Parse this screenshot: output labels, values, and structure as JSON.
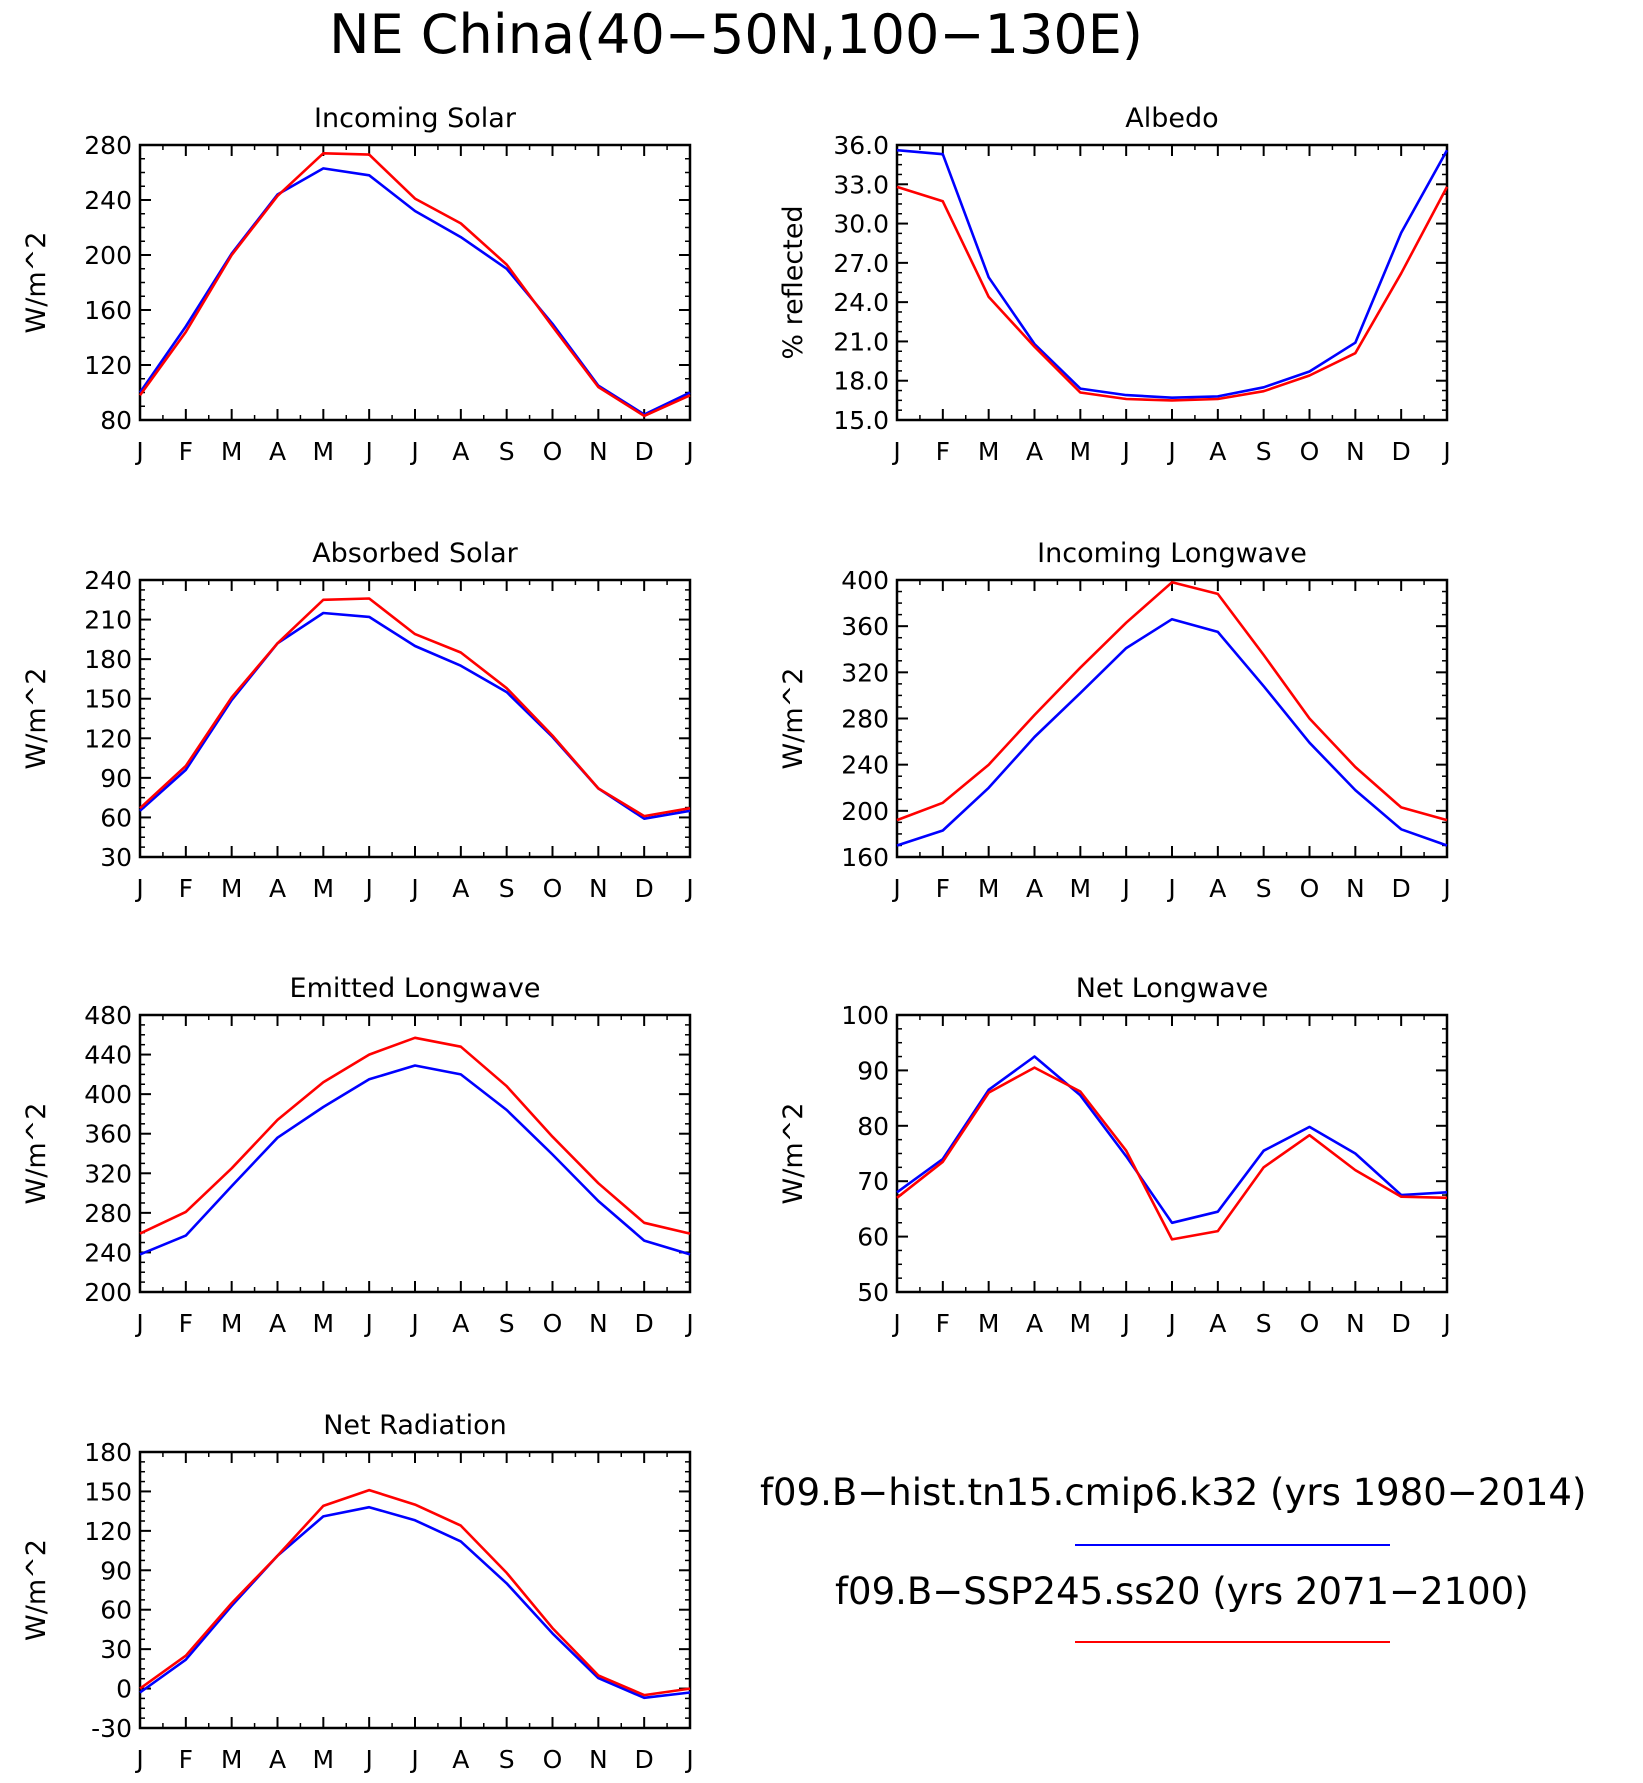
{
  "title": "NE China(40−50N,100−130E)",
  "months": [
    "J",
    "F",
    "M",
    "A",
    "M",
    "J",
    "J",
    "A",
    "S",
    "O",
    "N",
    "D",
    "J"
  ],
  "series_colors": {
    "hist": "#0000ff",
    "ssp": "#ff0000"
  },
  "legend": {
    "hist_label": "f09.B−hist.tn15.cmip6.k32 (yrs 1980−2014)",
    "ssp_label": "f09.B−SSP245.ss20 (yrs 2071−2100)"
  },
  "chart_data": [
    {
      "type": "line",
      "title": "Incoming Solar",
      "ylabel": "W/m^2",
      "ylim": [
        80,
        280
      ],
      "yticks": [
        "80",
        "120",
        "160",
        "200",
        "240",
        "280"
      ],
      "x": [
        "J",
        "F",
        "M",
        "A",
        "M",
        "J",
        "J",
        "A",
        "S",
        "O",
        "N",
        "D",
        "J"
      ],
      "series": [
        {
          "name": "f09.B−hist.tn15.cmip6.k32 (yrs 1980−2014)",
          "values": [
            100,
            148,
            201,
            244,
            263,
            258,
            232,
            213,
            190,
            150,
            105,
            84,
            100
          ]
        },
        {
          "name": "f09.B−SSP245.ss20 (yrs 2071−2100)",
          "values": [
            98,
            144,
            200,
            243,
            274,
            273,
            241,
            223,
            193,
            148,
            104,
            83,
            98
          ]
        }
      ]
    },
    {
      "type": "line",
      "title": "Albedo",
      "ylabel": "% reflected",
      "ylim": [
        15,
        36
      ],
      "yticks": [
        "15.0",
        "18.0",
        "21.0",
        "24.0",
        "27.0",
        "30.0",
        "33.0",
        "36.0"
      ],
      "x": [
        "J",
        "F",
        "M",
        "A",
        "M",
        "J",
        "J",
        "A",
        "S",
        "O",
        "N",
        "D",
        "J"
      ],
      "series": [
        {
          "name": "f09.B−hist.tn15.cmip6.k32 (yrs 1980−2014)",
          "values": [
            35.6,
            35.3,
            25.9,
            20.8,
            17.4,
            16.9,
            16.7,
            16.8,
            17.5,
            18.7,
            20.9,
            29.3,
            35.6
          ]
        },
        {
          "name": "f09.B−SSP245.ss20 (yrs 2071−2100)",
          "values": [
            32.8,
            31.7,
            24.4,
            20.6,
            17.1,
            16.6,
            16.5,
            16.6,
            17.2,
            18.4,
            20.1,
            26.2,
            32.8
          ]
        }
      ]
    },
    {
      "type": "line",
      "title": "Absorbed Solar",
      "ylabel": "W/m^2",
      "ylim": [
        30,
        240
      ],
      "yticks": [
        "30",
        "60",
        "90",
        "120",
        "150",
        "180",
        "210",
        "240"
      ],
      "x": [
        "J",
        "F",
        "M",
        "A",
        "M",
        "J",
        "J",
        "A",
        "S",
        "O",
        "N",
        "D",
        "J"
      ],
      "series": [
        {
          "name": "f09.B−hist.tn15.cmip6.k32 (yrs 1980−2014)",
          "values": [
            65,
            96,
            149,
            192,
            215,
            212,
            190,
            175,
            155,
            121,
            82,
            59,
            65
          ]
        },
        {
          "name": "f09.B−SSP245.ss20 (yrs 2071−2100)",
          "values": [
            67,
            99,
            151,
            192,
            225,
            226,
            199,
            185,
            158,
            122,
            82,
            61,
            67
          ]
        }
      ]
    },
    {
      "type": "line",
      "title": "Incoming Longwave",
      "ylabel": "W/m^2",
      "ylim": [
        160,
        400
      ],
      "yticks": [
        "160",
        "200",
        "240",
        "280",
        "320",
        "360",
        "400"
      ],
      "x": [
        "J",
        "F",
        "M",
        "A",
        "M",
        "J",
        "J",
        "A",
        "S",
        "O",
        "N",
        "D",
        "J"
      ],
      "series": [
        {
          "name": "f09.B−hist.tn15.cmip6.k32 (yrs 1980−2014)",
          "values": [
            170,
            183,
            220,
            264,
            302,
            341,
            366,
            355,
            308,
            259,
            218,
            184,
            170
          ]
        },
        {
          "name": "f09.B−SSP245.ss20 (yrs 2071−2100)",
          "values": [
            192,
            207,
            240,
            283,
            324,
            363,
            398,
            388,
            335,
            280,
            238,
            203,
            192
          ]
        }
      ]
    },
    {
      "type": "line",
      "title": "Emitted Longwave",
      "ylabel": "W/m^2",
      "ylim": [
        200,
        480
      ],
      "yticks": [
        "200",
        "240",
        "280",
        "320",
        "360",
        "400",
        "440",
        "480"
      ],
      "x": [
        "J",
        "F",
        "M",
        "A",
        "M",
        "J",
        "J",
        "A",
        "S",
        "O",
        "N",
        "D",
        "J"
      ],
      "series": [
        {
          "name": "f09.B−hist.tn15.cmip6.k32 (yrs 1980−2014)",
          "values": [
            238,
            257,
            307,
            356,
            387,
            415,
            429,
            420,
            384,
            339,
            292,
            252,
            238
          ]
        },
        {
          "name": "f09.B−SSP245.ss20 (yrs 2071−2100)",
          "values": [
            259,
            281,
            325,
            374,
            412,
            440,
            457,
            448,
            408,
            357,
            310,
            270,
            259
          ]
        }
      ]
    },
    {
      "type": "line",
      "title": "Net Longwave",
      "ylabel": "W/m^2",
      "ylim": [
        50,
        100
      ],
      "yticks": [
        "50",
        "60",
        "70",
        "80",
        "90",
        "100"
      ],
      "x": [
        "J",
        "F",
        "M",
        "A",
        "M",
        "J",
        "J",
        "A",
        "S",
        "O",
        "N",
        "D",
        "J"
      ],
      "series": [
        {
          "name": "f09.B−hist.tn15.cmip6.k32 (yrs 1980−2014)",
          "values": [
            68,
            74,
            86.5,
            92.5,
            85.5,
            74.5,
            62.5,
            64.5,
            75.5,
            79.8,
            75,
            67.5,
            68
          ]
        },
        {
          "name": "f09.B−SSP245.ss20 (yrs 2071−2100)",
          "values": [
            67,
            73.5,
            86,
            90.5,
            86.2,
            75.5,
            59.5,
            61,
            72.5,
            78.3,
            72,
            67.2,
            67
          ]
        }
      ]
    },
    {
      "type": "line",
      "title": "Net Radiation",
      "ylabel": "W/m^2",
      "ylim": [
        -30,
        180
      ],
      "yticks": [
        "-30",
        "0",
        "30",
        "60",
        "90",
        "120",
        "150",
        "180"
      ],
      "x": [
        "J",
        "F",
        "M",
        "A",
        "M",
        "J",
        "J",
        "A",
        "S",
        "O",
        "N",
        "D",
        "J"
      ],
      "series": [
        {
          "name": "f09.B−hist.tn15.cmip6.k32 (yrs 1980−2014)",
          "values": [
            -3,
            22,
            63,
            101,
            131,
            138,
            128,
            112,
            80,
            42,
            8,
            -7,
            -3
          ]
        },
        {
          "name": "f09.B−SSP245.ss20 (yrs 2071−2100)",
          "values": [
            0,
            25,
            65,
            101,
            139,
            151,
            140,
            124,
            88,
            46,
            10,
            -5,
            0
          ]
        }
      ]
    }
  ]
}
